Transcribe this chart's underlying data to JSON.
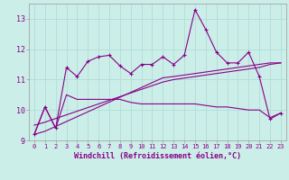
{
  "xlabel": "Windchill (Refroidissement éolien,°C)",
  "ylabel": "",
  "background_color": "#cceee8",
  "grid_color": "#b0ddd8",
  "line_color": "#880088",
  "hours": [
    0,
    1,
    2,
    3,
    4,
    5,
    6,
    7,
    8,
    9,
    10,
    11,
    12,
    13,
    14,
    15,
    16,
    17,
    18,
    19,
    20,
    21,
    22,
    23
  ],
  "line1": [
    9.2,
    10.1,
    9.4,
    11.4,
    11.1,
    11.6,
    11.75,
    11.8,
    11.45,
    11.2,
    11.5,
    11.5,
    11.75,
    11.5,
    11.8,
    13.3,
    12.65,
    11.9,
    11.55,
    11.55,
    11.9,
    11.1,
    9.7,
    9.9
  ],
  "line2": [
    9.2,
    10.1,
    9.4,
    10.5,
    10.35,
    10.35,
    10.35,
    10.35,
    10.35,
    10.25,
    10.2,
    10.2,
    10.2,
    10.2,
    10.2,
    10.2,
    10.15,
    10.1,
    10.1,
    10.05,
    10.0,
    10.0,
    9.75,
    9.9
  ],
  "trend1": [
    9.2,
    9.3,
    9.46,
    9.62,
    9.78,
    9.94,
    10.1,
    10.26,
    10.42,
    10.58,
    10.74,
    10.9,
    11.06,
    11.1,
    11.15,
    11.2,
    11.25,
    11.3,
    11.35,
    11.4,
    11.45,
    11.5,
    11.55,
    11.55
  ],
  "trend2": [
    9.5,
    9.6,
    9.72,
    9.84,
    9.96,
    10.08,
    10.2,
    10.32,
    10.44,
    10.56,
    10.68,
    10.8,
    10.92,
    11.0,
    11.05,
    11.1,
    11.15,
    11.2,
    11.25,
    11.3,
    11.35,
    11.4,
    11.5,
    11.55
  ],
  "ylim": [
    9.0,
    13.5
  ],
  "xlim": [
    -0.5,
    23.5
  ],
  "yticks": [
    9,
    10,
    11,
    12,
    13
  ],
  "xticks": [
    0,
    1,
    2,
    3,
    4,
    5,
    6,
    7,
    8,
    9,
    10,
    11,
    12,
    13,
    14,
    15,
    16,
    17,
    18,
    19,
    20,
    21,
    22,
    23
  ]
}
